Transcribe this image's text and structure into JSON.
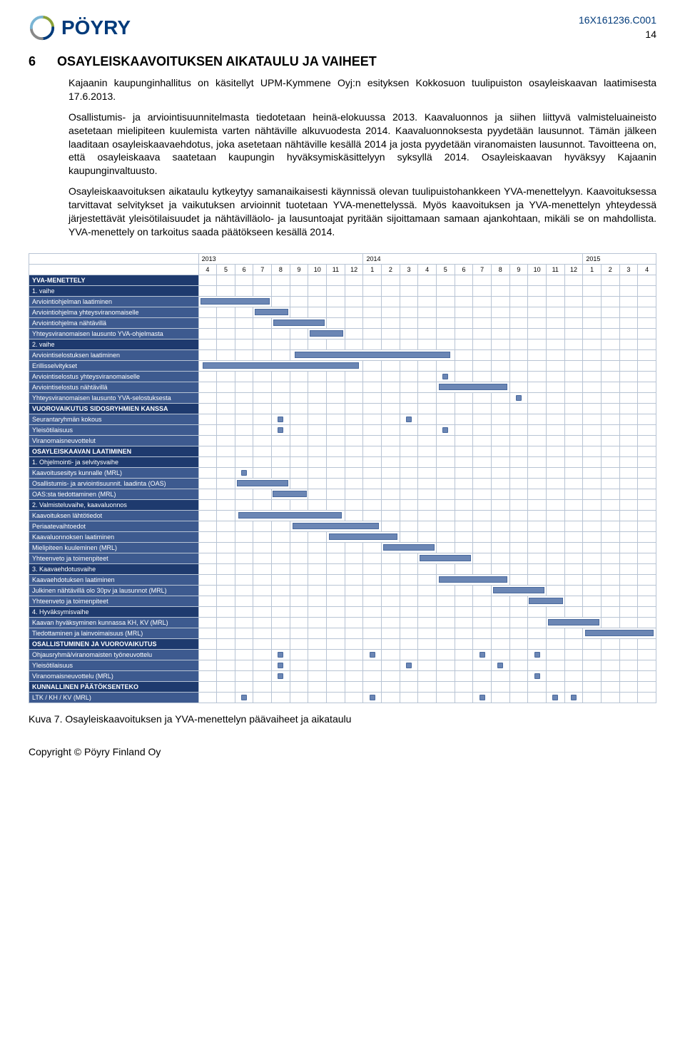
{
  "header": {
    "logo_text": "PÖYRY",
    "doc_code": "16X161236.C001",
    "page_num": "14"
  },
  "section": {
    "number": "6",
    "title": "OSAYLEISKAAVOITUKSEN AIKATAULU JA VAIHEET"
  },
  "paragraphs": [
    "Kajaanin kaupunginhallitus on käsitellyt UPM-Kymmene Oyj:n esityksen Kokkosuon tuulipuiston osayleiskaavan laatimisesta 17.6.2013.",
    "Osallistumis- ja arviointisuunnitelmasta tiedotetaan heinä-elokuussa 2013. Kaavaluonnos ja siihen liittyvä valmisteluaineisto asetetaan mielipiteen kuulemista varten nähtäville alkuvuodesta 2014. Kaavaluonnoksesta pyydetään lausunnot. Tämän jälkeen laaditaan osayleiskaavaehdotus, joka asetetaan nähtäville kesällä 2014 ja josta pyydetään viranomaisten lausunnot. Tavoitteena on, että osayleiskaava saatetaan kaupungin hyväksymiskäsittelyyn syksyllä 2014. Osayleiskaavan hyväksyy Kajaanin kaupunginvaltuusto.",
    "Osayleiskaavoituksen aikataulu kytkeytyy samanaikaisesti käynnissä olevan tuulipuistohankkeen YVA-menettelyyn. Kaavoituksessa tarvittavat selvitykset ja vaikutuksen arvioinnit tuotetaan YVA-menettelyssä. Myös kaavoituksen ja YVA-menettelyn yhteydessä järjestettävät yleisötilaisuudet ja nähtävilläolo- ja lausuntoajat pyritään sijoittamaan samaan ajankohtaan, mikäli se on mahdollista. YVA-menettely on tarkoitus saada päätökseen kesällä 2014."
  ],
  "gantt": {
    "years": [
      {
        "label": "2013",
        "span": 9
      },
      {
        "label": "2014",
        "span": 12
      },
      {
        "label": "2015",
        "span": 4
      }
    ],
    "months": [
      "4",
      "5",
      "6",
      "7",
      "8",
      "9",
      "10",
      "11",
      "12",
      "1",
      "2",
      "3",
      "4",
      "5",
      "6",
      "7",
      "8",
      "9",
      "10",
      "11",
      "12",
      "1",
      "2",
      "3",
      "4"
    ],
    "rows": [
      {
        "label": "YVA-MENETTELY",
        "class": "row-section",
        "bars": []
      },
      {
        "label": "1. vaihe",
        "class": "row-subsection",
        "bars": []
      },
      {
        "label": "Arviointiohjelman laatiminen",
        "class": "row-task",
        "bars": [
          {
            "start": 0,
            "end": 3,
            "type": "bar"
          }
        ]
      },
      {
        "label": "Arviointiohjelma yhteysviranomaiselle",
        "class": "row-task",
        "bars": [
          {
            "start": 3,
            "end": 4,
            "type": "bar"
          }
        ]
      },
      {
        "label": "Arviointiohjelma nähtävillä",
        "class": "row-task",
        "bars": [
          {
            "start": 4,
            "end": 6,
            "type": "bar"
          }
        ]
      },
      {
        "label": "Yhteysviranomaisen lausunto YVA-ohjelmasta",
        "class": "row-task",
        "bars": [
          {
            "start": 6,
            "end": 7,
            "type": "bar"
          }
        ]
      },
      {
        "label": "2. vaihe",
        "class": "row-subsection",
        "bars": []
      },
      {
        "label": "Arviointiselostuksen laatiminen",
        "class": "row-task",
        "bars": [
          {
            "start": 5,
            "end": 13,
            "type": "bar"
          }
        ]
      },
      {
        "label": "Erillisselvitykset",
        "class": "row-task",
        "bars": [
          {
            "start": 0,
            "end": 8,
            "type": "bar"
          }
        ]
      },
      {
        "label": "Arviointiselostus yhteysviranomaiselle",
        "class": "row-task",
        "bars": [
          {
            "start": 13,
            "end": 13,
            "type": "dot"
          }
        ]
      },
      {
        "label": "Arviointiselostus nähtävillä",
        "class": "row-task",
        "bars": [
          {
            "start": 13,
            "end": 16,
            "type": "bar"
          }
        ]
      },
      {
        "label": "Yhteysviranomaisen lausunto YVA-selostuksesta",
        "class": "row-task",
        "bars": [
          {
            "start": 17,
            "end": 17,
            "type": "dot"
          }
        ]
      },
      {
        "label": "VUOROVAIKUTUS SIDOSRYHMIEN KANSSA",
        "class": "row-section",
        "bars": []
      },
      {
        "label": "Seurantaryhmän kokous",
        "class": "row-task",
        "bars": [
          {
            "start": 4,
            "end": 4,
            "type": "dot"
          },
          {
            "start": 11,
            "end": 11,
            "type": "dot"
          }
        ]
      },
      {
        "label": "Yleisötilaisuus",
        "class": "row-task",
        "bars": [
          {
            "start": 4,
            "end": 4,
            "type": "dot"
          },
          {
            "start": 13,
            "end": 13,
            "type": "dot"
          }
        ]
      },
      {
        "label": "Viranomaisneuvottelut",
        "class": "row-task",
        "bars": []
      },
      {
        "label": "OSAYLEISKAAVAN LAATIMINEN",
        "class": "row-section",
        "bars": []
      },
      {
        "label": "1. Ohjelmointi- ja selvitysvaihe",
        "class": "row-subsection",
        "bars": []
      },
      {
        "label": "Kaavoitusesitys kunnalle (MRL)",
        "class": "row-task",
        "bars": [
          {
            "start": 2,
            "end": 2,
            "type": "dot"
          }
        ]
      },
      {
        "label": "Osallistumis- ja arviointisuunnit. laadinta (OAS)",
        "class": "row-task",
        "bars": [
          {
            "start": 2,
            "end": 4,
            "type": "bar"
          }
        ]
      },
      {
        "label": "OAS:sta tiedottaminen (MRL)",
        "class": "row-task",
        "bars": [
          {
            "start": 4,
            "end": 5,
            "type": "bar"
          }
        ]
      },
      {
        "label": "2. Valmisteluvaihe, kaavaluonnos",
        "class": "row-subsection",
        "bars": []
      },
      {
        "label": "Kaavoituksen lähtötiedot",
        "class": "row-task",
        "bars": [
          {
            "start": 2,
            "end": 7,
            "type": "bar"
          }
        ]
      },
      {
        "label": "Periaatevaihtoedot",
        "class": "row-task",
        "bars": [
          {
            "start": 5,
            "end": 9,
            "type": "bar"
          }
        ]
      },
      {
        "label": "Kaavaluonnoksen laatiminen",
        "class": "row-task",
        "bars": [
          {
            "start": 7,
            "end": 10,
            "type": "bar"
          }
        ]
      },
      {
        "label": "Mielipiteen kuuleminen (MRL)",
        "class": "row-task",
        "bars": [
          {
            "start": 10,
            "end": 12,
            "type": "bar"
          }
        ]
      },
      {
        "label": "Yhteenveto ja toimenpiteet",
        "class": "row-task",
        "bars": [
          {
            "start": 12,
            "end": 14,
            "type": "bar"
          }
        ]
      },
      {
        "label": "3. Kaavaehdotusvaihe",
        "class": "row-subsection",
        "bars": []
      },
      {
        "label": "Kaavaehdotuksen laatiminen",
        "class": "row-task",
        "bars": [
          {
            "start": 13,
            "end": 16,
            "type": "bar"
          }
        ]
      },
      {
        "label": "Julkinen nähtävillä olo 30pv ja lausunnot (MRL)",
        "class": "row-task",
        "bars": [
          {
            "start": 16,
            "end": 18,
            "type": "bar"
          }
        ]
      },
      {
        "label": "Yhteenveto ja toimenpiteet",
        "class": "row-task",
        "bars": [
          {
            "start": 18,
            "end": 19,
            "type": "bar"
          }
        ]
      },
      {
        "label": "4. Hyväksymisvaihe",
        "class": "row-subsection",
        "bars": []
      },
      {
        "label": "Kaavan hyväksyminen kunnassa KH, KV (MRL)",
        "class": "row-task",
        "bars": [
          {
            "start": 19,
            "end": 21,
            "type": "bar"
          }
        ]
      },
      {
        "label": "Tiedottaminen ja lainvoimaisuus (MRL)",
        "class": "row-task",
        "bars": [
          {
            "start": 21,
            "end": 24,
            "type": "bar"
          }
        ]
      },
      {
        "label": "OSALLISTUMINEN JA VUOROVAIKUTUS",
        "class": "row-section",
        "bars": []
      },
      {
        "label": "Ohjausryhmä/viranomaisten työneuvottelu",
        "class": "row-task",
        "bars": [
          {
            "start": 4,
            "end": 4,
            "type": "dot"
          },
          {
            "start": 9,
            "end": 9,
            "type": "dot"
          },
          {
            "start": 15,
            "end": 15,
            "type": "dot"
          },
          {
            "start": 18,
            "end": 18,
            "type": "dot"
          }
        ]
      },
      {
        "label": "Yleisötilaisuus",
        "class": "row-task",
        "bars": [
          {
            "start": 4,
            "end": 4,
            "type": "dot"
          },
          {
            "start": 11,
            "end": 11,
            "type": "dot"
          },
          {
            "start": 16,
            "end": 16,
            "type": "dot"
          }
        ]
      },
      {
        "label": "Viranomaisneuvottelu (MRL)",
        "class": "row-task",
        "bars": [
          {
            "start": 4,
            "end": 4,
            "type": "dot"
          },
          {
            "start": 18,
            "end": 18,
            "type": "dot"
          }
        ]
      },
      {
        "label": "KUNNALLINEN PÄÄTÖKSENTEKO",
        "class": "row-section",
        "bars": []
      },
      {
        "label": "LTK / KH / KV (MRL)",
        "class": "row-task",
        "bars": [
          {
            "start": 2,
            "end": 2,
            "type": "dot"
          },
          {
            "start": 9,
            "end": 9,
            "type": "dot"
          },
          {
            "start": 15,
            "end": 15,
            "type": "dot"
          },
          {
            "start": 19,
            "end": 19,
            "type": "dot"
          },
          {
            "start": 20,
            "end": 20,
            "type": "dot"
          }
        ]
      }
    ]
  },
  "caption": "Kuva 7. Osayleiskaavoituksen ja YVA-menettelyn päävaiheet ja aikataulu",
  "footer": "Copyright © Pöyry Finland Oy"
}
